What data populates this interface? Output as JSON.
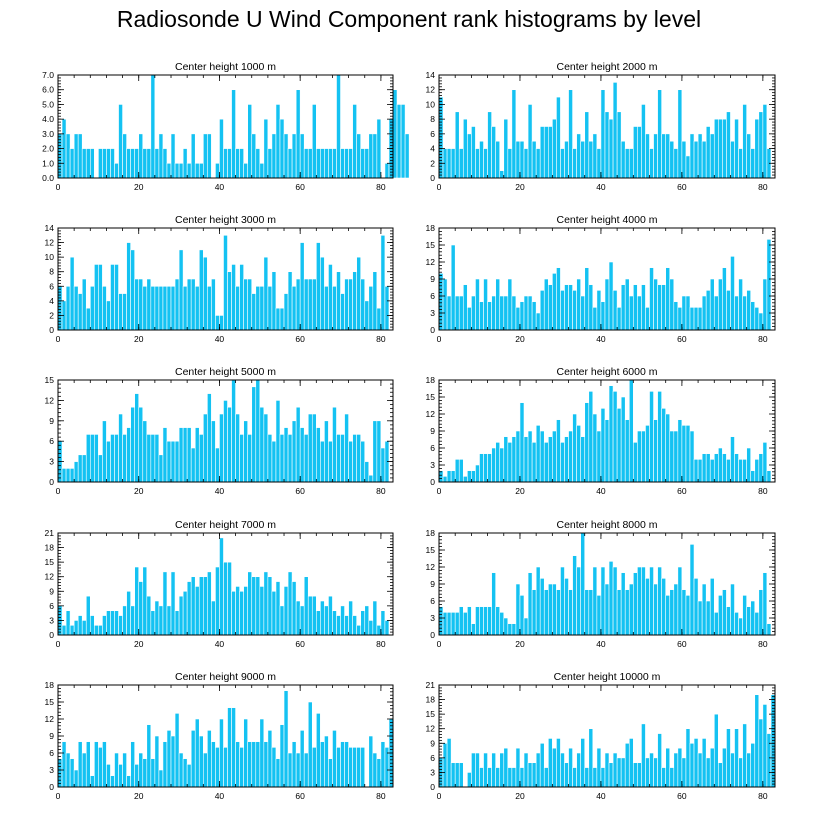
{
  "figure": {
    "title": "Radiosonde U Wind Component rank histograms by level",
    "bar_color": "#14c2f2"
  },
  "chart_data": [
    {
      "type": "bar",
      "title": "Center height 1000 m",
      "xlim": [
        0,
        83
      ],
      "ylim": [
        0,
        7
      ],
      "xticks": [
        0,
        20,
        40,
        60,
        80
      ],
      "xtick_labels": [
        "0",
        "20",
        "40",
        "60",
        "80"
      ],
      "yticks": [
        0,
        1,
        2,
        3,
        4,
        5,
        6,
        7
      ],
      "ytick_labels": [
        "0.0",
        "1.0",
        "2.0",
        "3.0",
        "4.0",
        "5.0",
        "6.0",
        "7.0"
      ],
      "values": [
        3,
        4,
        3,
        2,
        3,
        3,
        2,
        2,
        2,
        0,
        2,
        2,
        2,
        2,
        1,
        5,
        3,
        2,
        2,
        2,
        3,
        2,
        2,
        7,
        2,
        3,
        2,
        1,
        3,
        1,
        1,
        2,
        1,
        3,
        1,
        1,
        3,
        3,
        0,
        1,
        4,
        2,
        2,
        6,
        2,
        2,
        1,
        5,
        3,
        2,
        1,
        4,
        2,
        3,
        5,
        4,
        3,
        2,
        3,
        6,
        3,
        2,
        2,
        5,
        2,
        2,
        2,
        2,
        2,
        7,
        2,
        2,
        2,
        5,
        3,
        2,
        2,
        3,
        3,
        4,
        0,
        1,
        4,
        6,
        5,
        5,
        3
      ]
    },
    {
      "type": "bar",
      "title": "Center height 2000 m",
      "xlim": [
        0,
        83
      ],
      "ylim": [
        0,
        14
      ],
      "xticks": [
        0,
        20,
        40,
        60,
        80
      ],
      "xtick_labels": [
        "0",
        "20",
        "40",
        "60",
        "80"
      ],
      "yticks": [
        0,
        2,
        4,
        6,
        8,
        10,
        12,
        14
      ],
      "ytick_labels": [
        "0",
        "2",
        "4",
        "6",
        "8",
        "10",
        "12",
        "14"
      ],
      "values": [
        11,
        4,
        4,
        4,
        9,
        4,
        8,
        6,
        7,
        4,
        5,
        4,
        9,
        7,
        5,
        1,
        8,
        4,
        12,
        5,
        5,
        4,
        10,
        5,
        4,
        7,
        7,
        7,
        8,
        11,
        4,
        5,
        12,
        4,
        6,
        5,
        9,
        5,
        6,
        4,
        12,
        9,
        8,
        13,
        9,
        5,
        4,
        4,
        7,
        7,
        10,
        6,
        4,
        6,
        12,
        6,
        6,
        5,
        4,
        12,
        5,
        3,
        6,
        5,
        6,
        5,
        7,
        6,
        8,
        8,
        8,
        9,
        5,
        8,
        4,
        10,
        6,
        4,
        8,
        9,
        10,
        4
      ]
    },
    {
      "type": "bar",
      "title": "Center height 3000 m",
      "xlim": [
        0,
        83
      ],
      "ylim": [
        0,
        14
      ],
      "xticks": [
        0,
        20,
        40,
        60,
        80
      ],
      "xtick_labels": [
        "0",
        "20",
        "40",
        "60",
        "80"
      ],
      "yticks": [
        0,
        2,
        4,
        6,
        8,
        10,
        12,
        14
      ],
      "ytick_labels": [
        "0",
        "2",
        "4",
        "6",
        "8",
        "10",
        "12",
        "14"
      ],
      "values": [
        6,
        4,
        6,
        10,
        6,
        5,
        7,
        3,
        6,
        9,
        9,
        6,
        4,
        9,
        9,
        5,
        5,
        12,
        11,
        7,
        7,
        6,
        7,
        6,
        6,
        6,
        6,
        6,
        6,
        7,
        11,
        6,
        7,
        7,
        6,
        11,
        10,
        6,
        7,
        2,
        2,
        13,
        8,
        9,
        6,
        9,
        7,
        7,
        5,
        6,
        6,
        10,
        6,
        8,
        3,
        3,
        5,
        8,
        6,
        7,
        12,
        7,
        7,
        7,
        12,
        10,
        6,
        9,
        6,
        8,
        5,
        7,
        7,
        8,
        10,
        7,
        4,
        6,
        8,
        3,
        13,
        6
      ]
    },
    {
      "type": "bar",
      "title": "Center height 4000 m",
      "xlim": [
        0,
        83
      ],
      "ylim": [
        0,
        18
      ],
      "xticks": [
        0,
        20,
        40,
        60,
        80
      ],
      "xtick_labels": [
        "0",
        "20",
        "40",
        "60",
        "80"
      ],
      "yticks": [
        0,
        3,
        6,
        9,
        12,
        15,
        18
      ],
      "ytick_labels": [
        "0",
        "3",
        "6",
        "9",
        "12",
        "15",
        "18"
      ],
      "values": [
        10,
        9,
        6,
        15,
        6,
        6,
        8,
        4,
        6,
        9,
        5,
        9,
        5,
        6,
        9,
        6,
        6,
        9,
        6,
        4,
        5,
        6,
        6,
        5,
        3,
        7,
        9,
        8,
        10,
        11,
        7,
        8,
        8,
        7,
        9,
        6,
        11,
        8,
        4,
        7,
        5,
        9,
        12,
        7,
        4,
        8,
        9,
        6,
        8,
        6,
        8,
        4,
        11,
        9,
        8,
        8,
        11,
        9,
        5,
        4,
        6,
        6,
        4,
        4,
        4,
        6,
        7,
        9,
        6,
        9,
        11,
        7,
        13,
        6,
        9,
        6,
        7,
        5,
        4,
        3,
        9,
        16
      ]
    },
    {
      "type": "bar",
      "title": "Center height 5000 m",
      "xlim": [
        0,
        83
      ],
      "ylim": [
        0,
        15
      ],
      "xticks": [
        0,
        20,
        40,
        60,
        80
      ],
      "xtick_labels": [
        "0",
        "20",
        "40",
        "60",
        "80"
      ],
      "yticks": [
        0,
        3,
        6,
        9,
        12,
        15
      ],
      "ytick_labels": [
        "0",
        "3",
        "6",
        "9",
        "12",
        "15"
      ],
      "values": [
        6,
        2,
        2,
        2,
        3,
        4,
        4,
        7,
        7,
        7,
        4,
        9,
        6,
        7,
        7,
        10,
        7,
        8,
        11,
        13,
        11,
        9,
        7,
        7,
        7,
        4,
        8,
        6,
        6,
        6,
        8,
        8,
        8,
        5,
        8,
        7,
        10,
        13,
        9,
        5,
        10,
        12,
        11,
        15,
        10,
        7,
        9,
        7,
        14,
        15,
        11,
        10,
        7,
        6,
        12,
        7,
        8,
        7,
        9,
        11,
        8,
        7,
        10,
        10,
        8,
        6,
        9,
        6,
        11,
        7,
        7,
        10,
        6,
        7,
        7,
        6,
        3,
        1,
        9,
        9,
        5,
        6
      ]
    },
    {
      "type": "bar",
      "title": "Center height 6000 m",
      "xlim": [
        0,
        83
      ],
      "ylim": [
        0,
        18
      ],
      "xticks": [
        0,
        20,
        40,
        60,
        80
      ],
      "xtick_labels": [
        "0",
        "20",
        "40",
        "60",
        "80"
      ],
      "yticks": [
        0,
        3,
        6,
        9,
        12,
        15,
        18
      ],
      "ytick_labels": [
        "0",
        "3",
        "6",
        "9",
        "12",
        "15",
        "18"
      ],
      "values": [
        2,
        1,
        2,
        2,
        4,
        4,
        1,
        2,
        2,
        3,
        5,
        5,
        5,
        6,
        7,
        6,
        8,
        7,
        8,
        9,
        14,
        8,
        9,
        7,
        10,
        9,
        7,
        8,
        9,
        11,
        7,
        8,
        9,
        12,
        10,
        8,
        14,
        16,
        12,
        9,
        13,
        11,
        17,
        16,
        13,
        15,
        11,
        18,
        7,
        9,
        9,
        10,
        16,
        11,
        16,
        13,
        12,
        9,
        9,
        11,
        10,
        10,
        9,
        4,
        4,
        5,
        5,
        4,
        5,
        6,
        5,
        4,
        8,
        5,
        4,
        4,
        6,
        2,
        4,
        5,
        7,
        2
      ]
    },
    {
      "type": "bar",
      "title": "Center height 7000 m",
      "xlim": [
        0,
        83
      ],
      "ylim": [
        0,
        21
      ],
      "xticks": [
        0,
        20,
        40,
        60,
        80
      ],
      "xtick_labels": [
        "0",
        "20",
        "40",
        "60",
        "80"
      ],
      "yticks": [
        0,
        3,
        6,
        9,
        12,
        15,
        18,
        21
      ],
      "ytick_labels": [
        "0",
        "3",
        "6",
        "9",
        "12",
        "15",
        "18",
        "21"
      ],
      "values": [
        6,
        2,
        5,
        2,
        3,
        4,
        3,
        8,
        4,
        2,
        2,
        4,
        5,
        5,
        5,
        4,
        6,
        9,
        6,
        14,
        11,
        14,
        8,
        5,
        7,
        6,
        13,
        6,
        13,
        5,
        8,
        9,
        11,
        12,
        10,
        12,
        12,
        13,
        7,
        14,
        20,
        15,
        15,
        9,
        10,
        9,
        10,
        13,
        12,
        12,
        10,
        13,
        12,
        9,
        11,
        6,
        10,
        13,
        11,
        7,
        6,
        12,
        8,
        8,
        5,
        7,
        6,
        8,
        5,
        4,
        6,
        4,
        7,
        4,
        2,
        5,
        6,
        3,
        7,
        2,
        5,
        3
      ]
    },
    {
      "type": "bar",
      "title": "Center height 8000 m",
      "xlim": [
        0,
        83
      ],
      "ylim": [
        0,
        18
      ],
      "xticks": [
        0,
        20,
        40,
        60,
        80
      ],
      "xtick_labels": [
        "0",
        "20",
        "40",
        "60",
        "80"
      ],
      "yticks": [
        0,
        3,
        6,
        9,
        12,
        15,
        18
      ],
      "ytick_labels": [
        "0",
        "3",
        "6",
        "9",
        "12",
        "15",
        "18"
      ],
      "values": [
        5,
        4,
        4,
        4,
        4,
        5,
        4,
        5,
        2,
        5,
        5,
        5,
        5,
        11,
        5,
        4,
        3,
        2,
        2,
        9,
        7,
        3,
        11,
        8,
        12,
        10,
        8,
        9,
        9,
        8,
        12,
        10,
        8,
        14,
        12,
        18,
        8,
        8,
        12,
        7,
        12,
        9,
        13,
        12,
        8,
        11,
        8,
        9,
        11,
        12,
        12,
        10,
        12,
        9,
        12,
        10,
        7,
        8,
        9,
        12,
        8,
        7,
        16,
        10,
        6,
        9,
        6,
        10,
        4,
        7,
        8,
        5,
        9,
        4,
        3,
        7,
        5,
        6,
        4,
        8,
        11,
        2
      ]
    },
    {
      "type": "bar",
      "title": "Center height 9000 m",
      "xlim": [
        0,
        83
      ],
      "ylim": [
        0,
        18
      ],
      "xticks": [
        0,
        20,
        40,
        60,
        80
      ],
      "xtick_labels": [
        "0",
        "20",
        "40",
        "60",
        "80"
      ],
      "yticks": [
        0,
        3,
        6,
        9,
        12,
        15,
        18
      ],
      "ytick_labels": [
        "0",
        "3",
        "6",
        "9",
        "12",
        "15",
        "18"
      ],
      "values": [
        5,
        8,
        6,
        5,
        3,
        8,
        6,
        8,
        2,
        8,
        7,
        8,
        4,
        2,
        6,
        4,
        6,
        2,
        8,
        4,
        6,
        5,
        11,
        5,
        9,
        3,
        8,
        10,
        9,
        13,
        6,
        5,
        4,
        10,
        12,
        9,
        6,
        10,
        8,
        7,
        12,
        7,
        14,
        14,
        8,
        7,
        12,
        8,
        8,
        8,
        12,
        8,
        10,
        7,
        5,
        11,
        17,
        6,
        8,
        6,
        10,
        6,
        15,
        7,
        13,
        8,
        9,
        5,
        10,
        7,
        8,
        8,
        7,
        7,
        7,
        7,
        0,
        9,
        6,
        5,
        8,
        7,
        12
      ]
    },
    {
      "type": "bar",
      "title": "Center height 10000 m",
      "xlim": [
        0,
        83
      ],
      "ylim": [
        0,
        21
      ],
      "xticks": [
        0,
        20,
        40,
        60,
        80
      ],
      "xtick_labels": [
        "0",
        "20",
        "40",
        "60",
        "80"
      ],
      "yticks": [
        0,
        3,
        6,
        9,
        12,
        15,
        18,
        21
      ],
      "ytick_labels": [
        "0",
        "3",
        "6",
        "9",
        "12",
        "15",
        "18",
        "21"
      ],
      "values": [
        6,
        9,
        10,
        5,
        5,
        5,
        0,
        3,
        7,
        7,
        4,
        7,
        4,
        7,
        4,
        7,
        8,
        4,
        4,
        8,
        4,
        7,
        5,
        5,
        7,
        9,
        4,
        10,
        8,
        10,
        7,
        5,
        8,
        4,
        7,
        10,
        4,
        12,
        4,
        8,
        4,
        7,
        5,
        7,
        6,
        6,
        9,
        10,
        5,
        5,
        13,
        6,
        7,
        6,
        11,
        4,
        8,
        4,
        7,
        8,
        6,
        12,
        9,
        10,
        7,
        10,
        6,
        8,
        15,
        5,
        8,
        12,
        7,
        12,
        6,
        13,
        7,
        9,
        19,
        14,
        17,
        11,
        19
      ]
    }
  ]
}
